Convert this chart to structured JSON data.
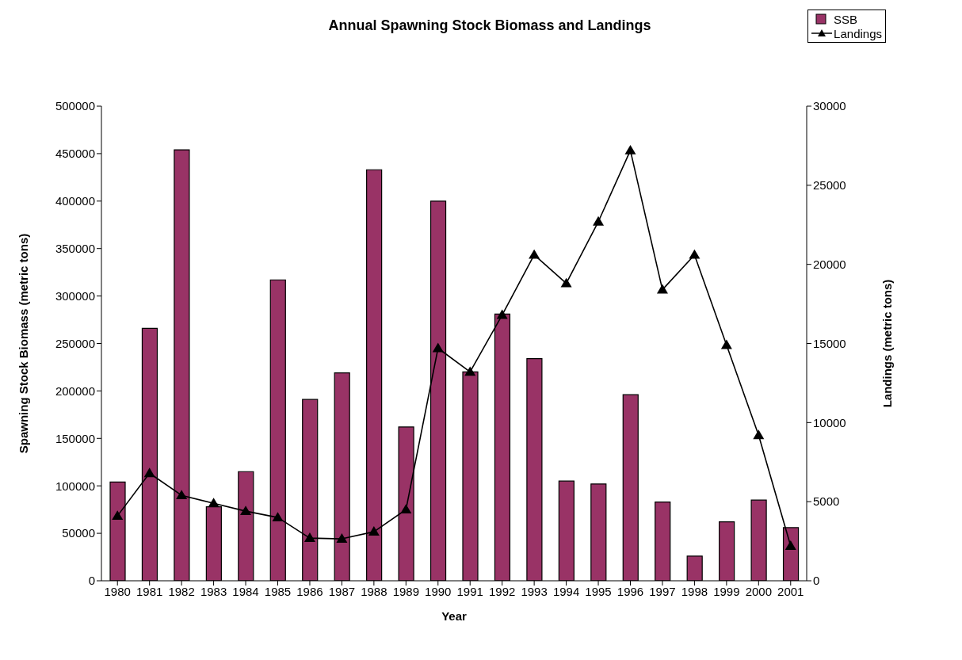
{
  "chart_data": {
    "type": "bar",
    "title": "Annual Spawning Stock Biomass and Landings",
    "xlabel": "Year",
    "ylabel": "Spawning Stock Biomass (metric tons)",
    "y2label": "Landings (metric tons)",
    "categories": [
      "1980",
      "1981",
      "1982",
      "1983",
      "1984",
      "1985",
      "1986",
      "1987",
      "1988",
      "1989",
      "1990",
      "1991",
      "1992",
      "1993",
      "1994",
      "1995",
      "1996",
      "1997",
      "1998",
      "1999",
      "2000",
      "2001"
    ],
    "series": [
      {
        "name": "SSB",
        "color": "#993366",
        "values": [
          104000,
          266000,
          454000,
          78000,
          115000,
          317000,
          191000,
          219000,
          433000,
          162000,
          400000,
          220000,
          281000,
          234000,
          105000,
          102000,
          196000,
          83000,
          26000,
          62000,
          85000,
          56000
        ]
      },
      {
        "name": "Landings",
        "type": "line",
        "axis": "y2",
        "color": "#000000",
        "marker": "triangle",
        "line_style": "solid",
        "values": [
          4100,
          6800,
          5400,
          4900,
          4400,
          4000,
          2700,
          2650,
          3100,
          4500,
          14700,
          13200,
          16800,
          20600,
          18800,
          22700,
          27200,
          18400,
          20600,
          14900,
          9200,
          2200
        ]
      }
    ],
    "ylim": [
      0,
      500000
    ],
    "yticks": [
      0,
      50000,
      100000,
      150000,
      200000,
      250000,
      300000,
      350000,
      400000,
      450000,
      500000
    ],
    "y2lim": [
      0,
      30000
    ],
    "y2ticks": [
      0,
      5000,
      10000,
      15000,
      20000,
      25000,
      30000
    ],
    "grid": false,
    "legend": "top right"
  }
}
